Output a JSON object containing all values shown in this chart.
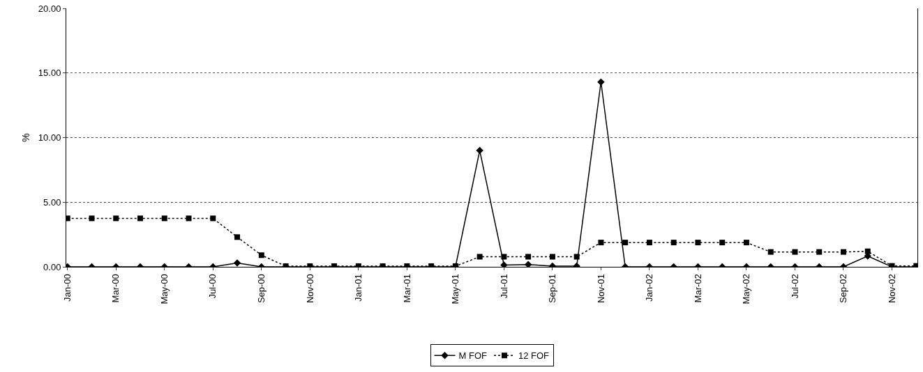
{
  "chart_data": {
    "type": "line",
    "ylabel": "%",
    "categories": [
      "Jan-00",
      null,
      "Mar-00",
      null,
      "May-00",
      null,
      "Jul-00",
      null,
      "Sep-00",
      null,
      "Nov-00",
      null,
      "Jan-01",
      null,
      "Mar-01",
      null,
      "May-01",
      null,
      "Jul-01",
      null,
      "Sep-01",
      null,
      "Nov-01",
      null,
      "Jan-02",
      null,
      "Mar-02",
      null,
      "May-02",
      null,
      "Jul-02",
      null,
      "Sep-02",
      null,
      "Nov-02",
      null
    ],
    "series": [
      {
        "name": "M FOF",
        "color": "#000000",
        "marker": "diamond",
        "line_style": "solid",
        "values": [
          0,
          0,
          0,
          0,
          0,
          0,
          0,
          0.3,
          0,
          0,
          0,
          0,
          0,
          0,
          0,
          0,
          0,
          9.0,
          0.14,
          0.18,
          0.05,
          0.05,
          14.3,
          0,
          0,
          0,
          0,
          0,
          0,
          0,
          0,
          0,
          0,
          0.83,
          0,
          0
        ]
      },
      {
        "name": "12 FOF",
        "color": "#000000",
        "marker": "square",
        "line_style": "dotted",
        "values": [
          3.75,
          3.75,
          3.75,
          3.75,
          3.75,
          3.75,
          3.75,
          2.3,
          0.9,
          0.05,
          0.05,
          0.05,
          0.05,
          0.05,
          0.05,
          0.05,
          0.05,
          0.78,
          0.78,
          0.78,
          0.78,
          0.78,
          1.88,
          1.88,
          1.88,
          1.88,
          1.88,
          1.88,
          1.88,
          1.15,
          1.15,
          1.15,
          1.15,
          1.2,
          0.07,
          0.07
        ]
      }
    ],
    "ylim": [
      0,
      20
    ],
    "yticks": [
      {
        "value": 0,
        "label": "0.00"
      },
      {
        "value": 5,
        "label": "5.00"
      },
      {
        "value": 10,
        "label": "10.00"
      },
      {
        "value": 15,
        "label": "15.00"
      },
      {
        "value": 20,
        "label": "20.00"
      }
    ],
    "grid": "y",
    "legend": "bottom"
  }
}
